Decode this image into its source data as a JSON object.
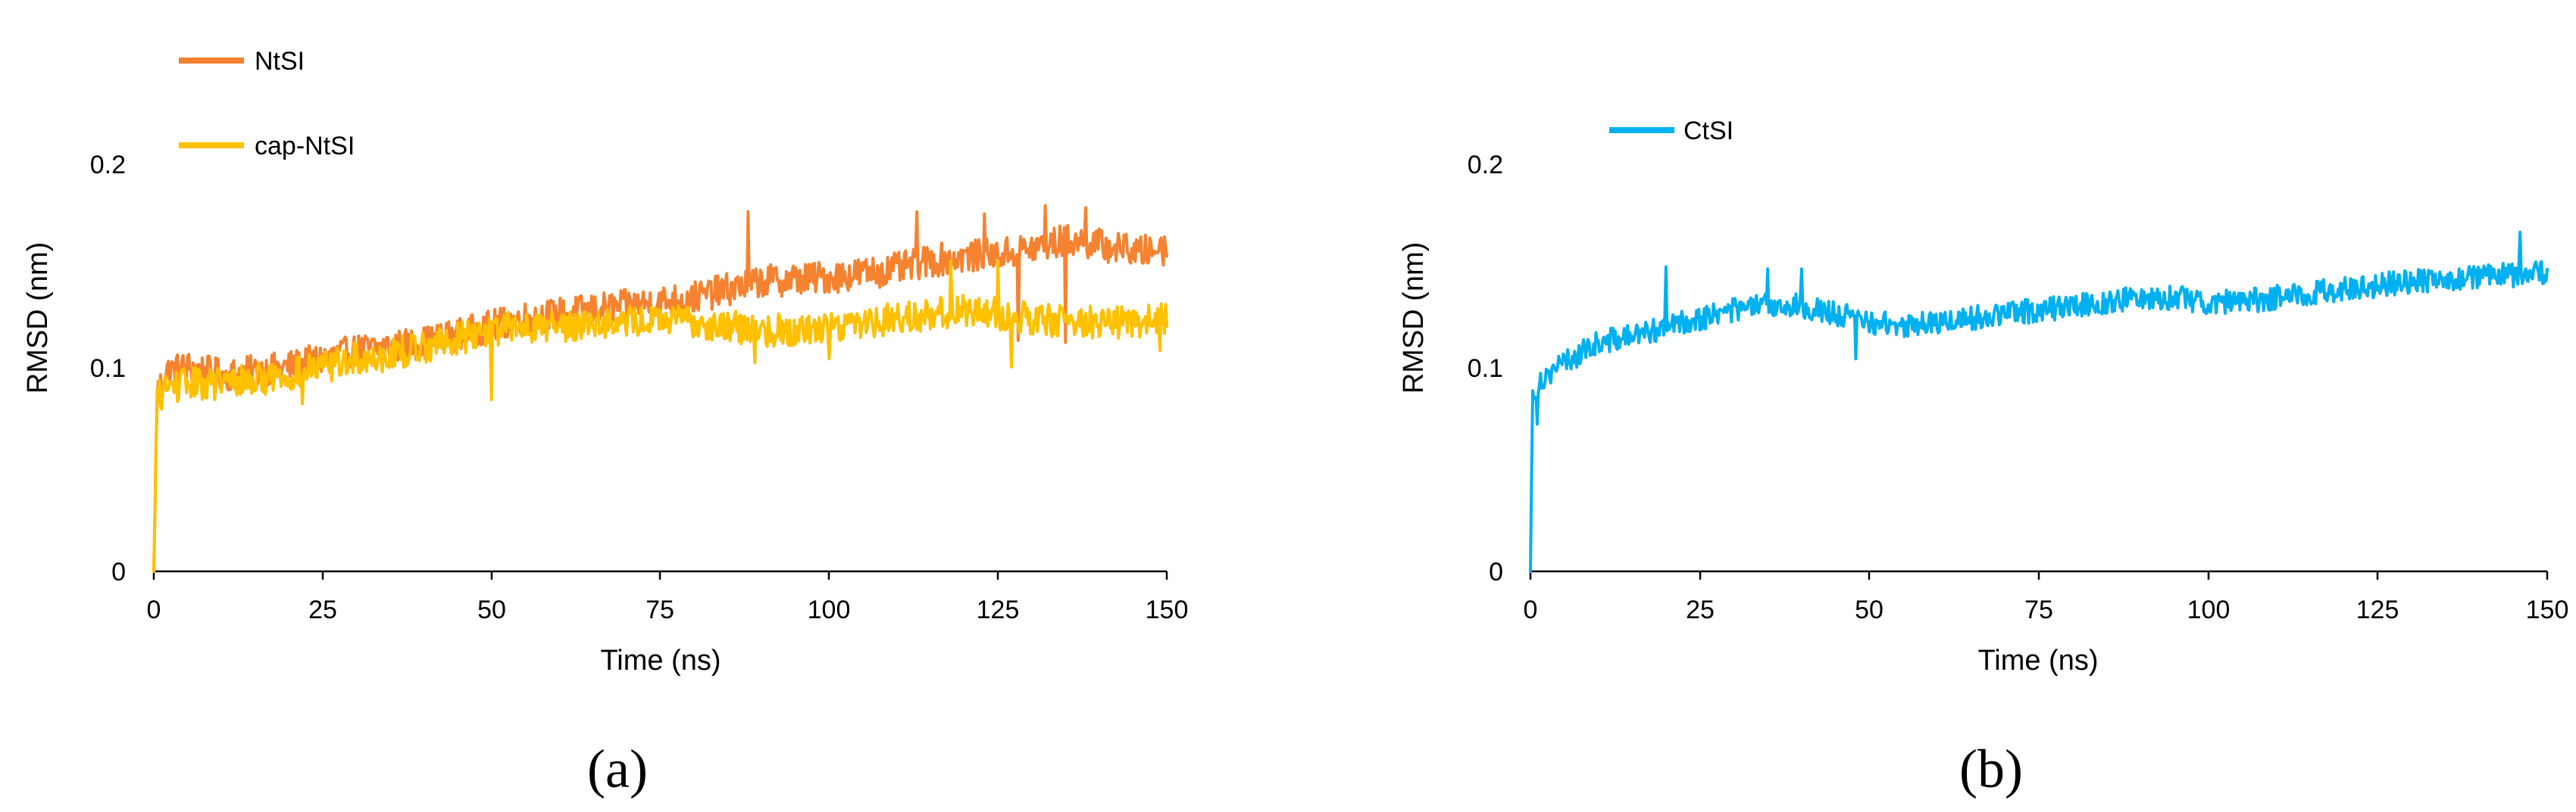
{
  "chart_data": [
    {
      "type": "line",
      "panel_label": "(a)",
      "xlabel": "Time (ns)",
      "ylabel": "RMSD (nm)",
      "xlim": [
        0,
        150
      ],
      "ylim": [
        0,
        0.27
      ],
      "xticks": [
        0,
        25,
        50,
        75,
        100,
        125,
        150
      ],
      "yticks": [
        0,
        0.1,
        0.2
      ],
      "ytick_labels": [
        "0",
        "0.1",
        "0.2"
      ],
      "grid": false,
      "legend_position": "top-left",
      "series": [
        {
          "name": "NtSI",
          "color": "#F58230",
          "noise": 0.008,
          "spikes": [
            [
              88,
              0.176
            ],
            [
              113,
              0.176
            ],
            [
              123,
              0.175
            ],
            [
              132,
              0.179
            ],
            [
              135,
              0.179
            ],
            [
              138,
              0.178
            ],
            [
              135,
              0.112
            ],
            [
              128,
              0.113
            ],
            [
              144,
              0.165
            ],
            [
              149,
              0.162
            ]
          ],
          "x": [
            0,
            0.5,
            2,
            5,
            10,
            15,
            20,
            25,
            30,
            35,
            40,
            45,
            50,
            55,
            60,
            65,
            70,
            75,
            80,
            85,
            90,
            95,
            100,
            105,
            110,
            115,
            120,
            125,
            130,
            135,
            140,
            145,
            150
          ],
          "values": [
            0.0,
            0.088,
            0.098,
            0.1,
            0.096,
            0.098,
            0.1,
            0.104,
            0.108,
            0.11,
            0.112,
            0.116,
            0.12,
            0.124,
            0.126,
            0.128,
            0.13,
            0.132,
            0.134,
            0.138,
            0.142,
            0.143,
            0.144,
            0.146,
            0.148,
            0.152,
            0.154,
            0.155,
            0.158,
            0.162,
            0.16,
            0.156,
            0.158
          ]
        },
        {
          "name": "cap-NtSI",
          "color": "#FFC000",
          "noise": 0.008,
          "spikes": [
            [
              22,
              0.082
            ],
            [
              50,
              0.084
            ],
            [
              89,
              0.102
            ],
            [
              100,
              0.104
            ],
            [
              118,
              0.152
            ],
            [
              125,
              0.152
            ],
            [
              127,
              0.1
            ],
            [
              149,
              0.108
            ]
          ],
          "x": [
            0,
            0.5,
            2,
            5,
            10,
            15,
            20,
            25,
            30,
            35,
            40,
            45,
            50,
            55,
            60,
            65,
            70,
            75,
            80,
            85,
            90,
            95,
            100,
            105,
            110,
            115,
            120,
            125,
            130,
            135,
            140,
            145,
            150
          ],
          "values": [
            0.0,
            0.085,
            0.09,
            0.092,
            0.092,
            0.094,
            0.096,
            0.1,
            0.104,
            0.106,
            0.11,
            0.114,
            0.118,
            0.12,
            0.12,
            0.122,
            0.122,
            0.123,
            0.122,
            0.12,
            0.118,
            0.118,
            0.12,
            0.122,
            0.124,
            0.126,
            0.128,
            0.126,
            0.124,
            0.122,
            0.122,
            0.122,
            0.124
          ]
        }
      ]
    },
    {
      "type": "line",
      "panel_label": "(b)",
      "xlabel": "Time (ns)",
      "ylabel": "RMSD (nm)",
      "xlim": [
        0,
        150
      ],
      "ylim": [
        0,
        0.27
      ],
      "xticks": [
        0,
        25,
        50,
        75,
        100,
        125,
        150
      ],
      "yticks": [
        0,
        0.1,
        0.2
      ],
      "ytick_labels": [
        "0",
        "0.1",
        "0.2"
      ],
      "grid": false,
      "legend_position": "top-left",
      "series": [
        {
          "name": "CtSI",
          "color": "#00B0F0",
          "noise": 0.006,
          "spikes": [
            [
              1,
              0.072
            ],
            [
              20,
              0.149
            ],
            [
              35,
              0.148
            ],
            [
              40,
              0.148
            ],
            [
              146,
              0.166
            ],
            [
              48,
              0.104
            ]
          ],
          "x": [
            0,
            0.3,
            1,
            3,
            5,
            8,
            10,
            15,
            20,
            25,
            30,
            35,
            40,
            45,
            50,
            55,
            60,
            65,
            70,
            75,
            80,
            85,
            90,
            95,
            100,
            105,
            110,
            115,
            120,
            125,
            130,
            135,
            140,
            145,
            150
          ],
          "values": [
            0.0,
            0.085,
            0.092,
            0.098,
            0.102,
            0.108,
            0.112,
            0.115,
            0.12,
            0.124,
            0.128,
            0.13,
            0.13,
            0.126,
            0.122,
            0.12,
            0.122,
            0.124,
            0.126,
            0.128,
            0.13,
            0.132,
            0.134,
            0.134,
            0.132,
            0.132,
            0.134,
            0.136,
            0.138,
            0.14,
            0.142,
            0.143,
            0.144,
            0.145,
            0.146
          ]
        }
      ]
    }
  ]
}
